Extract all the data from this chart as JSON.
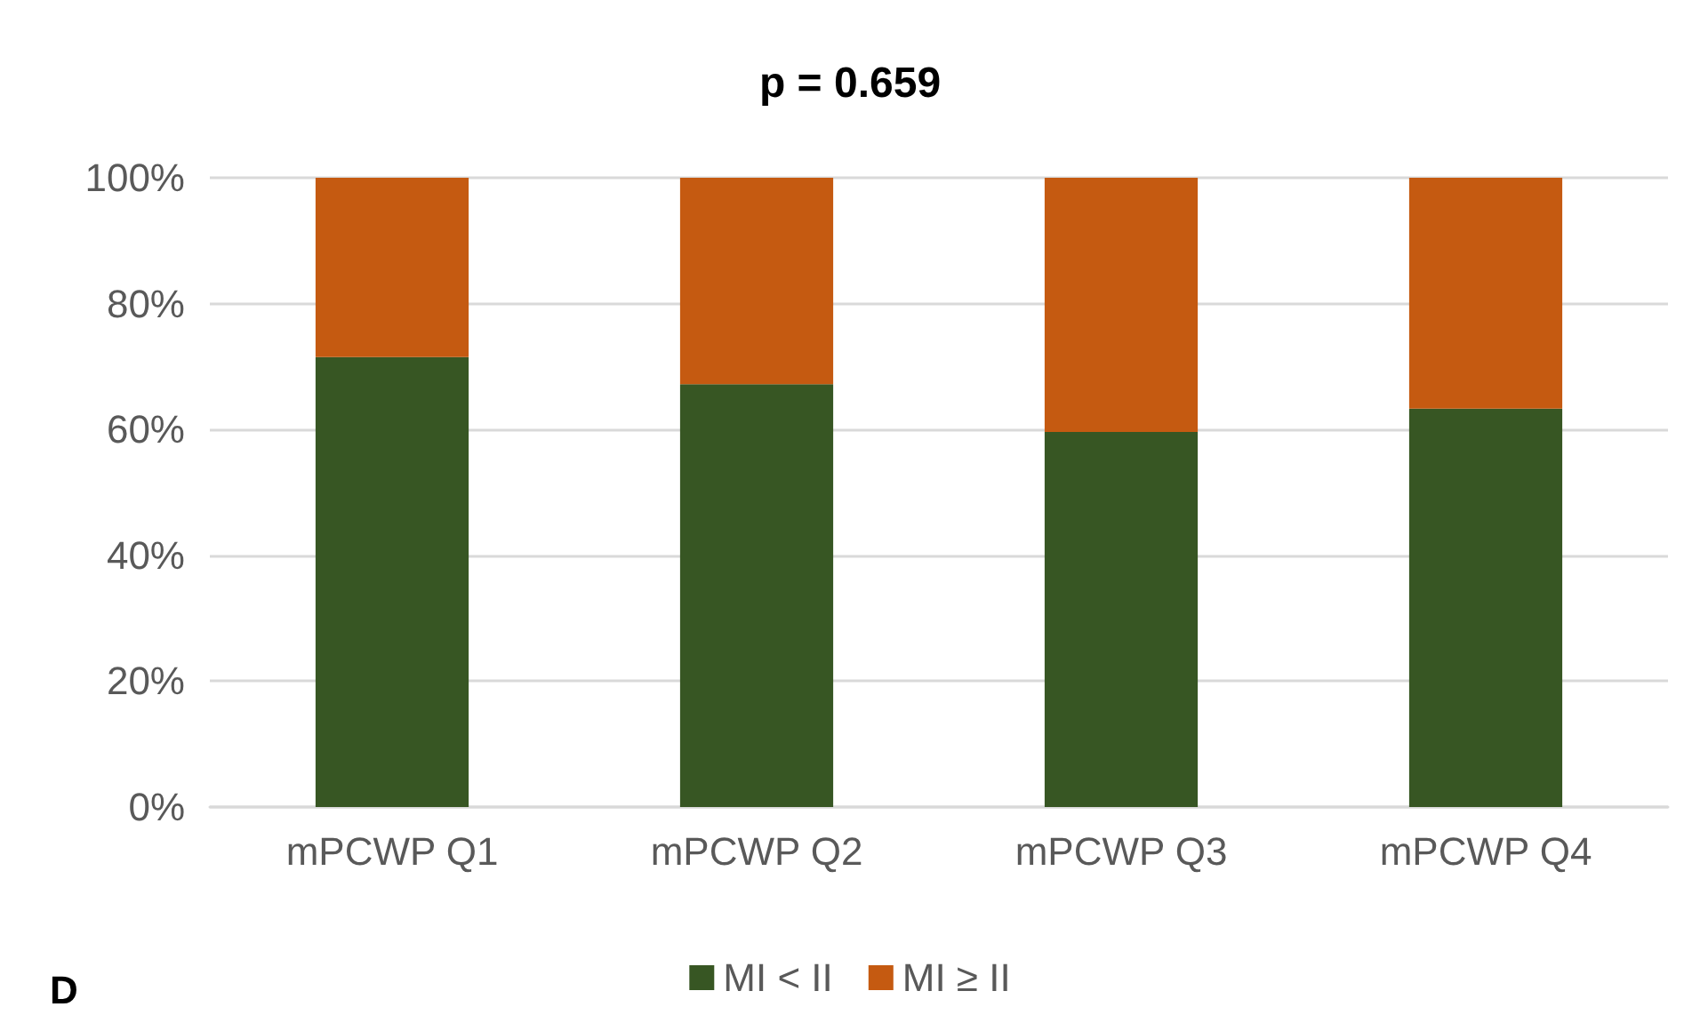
{
  "chart_data": {
    "type": "bar",
    "title": "p = 0.659",
    "categories": [
      "mPCWP Q1",
      "mPCWP Q2",
      "mPCWP Q3",
      "mPCWP Q4"
    ],
    "stacked": true,
    "series": [
      {
        "name": "MI < II",
        "color": "#375623",
        "values": [
          71.5,
          67.2,
          59.6,
          63.3
        ]
      },
      {
        "name": "MI ≥ II",
        "color": "#c55a11",
        "values": [
          28.5,
          32.8,
          40.4,
          36.7
        ]
      }
    ],
    "ylim": [
      0,
      100
    ],
    "yticks": [
      {
        "value": 0,
        "label": "0%"
      },
      {
        "value": 20,
        "label": "20%"
      },
      {
        "value": 40,
        "label": "40%"
      },
      {
        "value": 60,
        "label": "60%"
      },
      {
        "value": 80,
        "label": "80%"
      },
      {
        "value": 100,
        "label": "100%"
      }
    ],
    "grid": "y",
    "legend": "bottom",
    "annotations": [
      "D"
    ]
  }
}
